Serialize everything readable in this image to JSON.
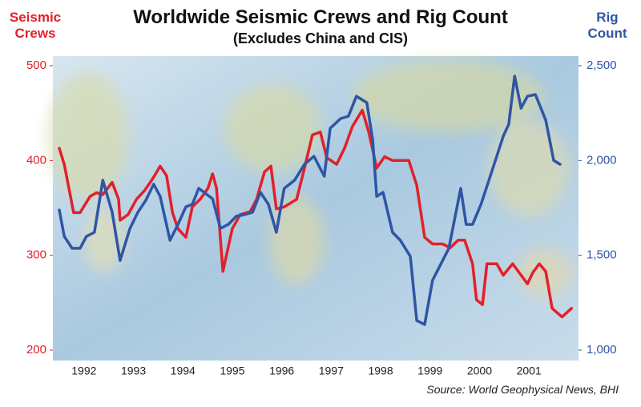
{
  "chart_data": {
    "type": "line",
    "title": "Worldwide Seismic Crews and Rig Count",
    "subtitle": "(Excludes China and CIS)",
    "y_label": "Seismic Crews",
    "y2_label": "Rig Count",
    "source": "Source: World Geophysical News, BHI",
    "xlim": [
      1992,
      2002.5
    ],
    "xticks": [
      {
        "value": 1992.5,
        "label": "1992"
      },
      {
        "value": 1993.5,
        "label": "1993"
      },
      {
        "value": 1994.5,
        "label": "1994"
      },
      {
        "value": 1995.5,
        "label": "1995"
      },
      {
        "value": 1996.5,
        "label": "1996"
      },
      {
        "value": 1997.5,
        "label": "1997"
      },
      {
        "value": 1998.5,
        "label": "1998"
      },
      {
        "value": 1999.5,
        "label": "1999"
      },
      {
        "value": 2000.5,
        "label": "2000"
      },
      {
        "value": 2001.5,
        "label": "2001"
      }
    ],
    "ylim": [
      200,
      500
    ],
    "yticks": [
      200,
      300,
      400,
      500
    ],
    "y2lim": [
      1000,
      2500
    ],
    "y2ticks": [
      {
        "value": 1000,
        "label": "1,000"
      },
      {
        "value": 1500,
        "label": "1,500"
      },
      {
        "value": 2000,
        "label": "2,000"
      },
      {
        "value": 2500,
        "label": "2,500"
      }
    ],
    "series": [
      {
        "name": "Seismic Crews",
        "color": "#e3202a",
        "axis": "y",
        "x": [
          1992.0,
          1992.1,
          1992.29,
          1992.42,
          1992.62,
          1992.75,
          1992.88,
          1993.07,
          1993.2,
          1993.23,
          1993.39,
          1993.56,
          1993.72,
          1993.88,
          1994.04,
          1994.17,
          1994.29,
          1994.4,
          1994.56,
          1994.69,
          1994.85,
          1995.01,
          1995.1,
          1995.18,
          1995.31,
          1995.5,
          1995.66,
          1995.86,
          1995.99,
          1996.15,
          1996.28,
          1996.39,
          1996.55,
          1996.8,
          1996.96,
          1997.12,
          1997.28,
          1997.41,
          1997.61,
          1997.77,
          1997.93,
          1998.13,
          1998.26,
          1998.42,
          1998.58,
          1998.74,
          1998.9,
          1999.07,
          1999.23,
          1999.39,
          1999.55,
          1999.75,
          1999.91,
          2000.07,
          2000.2,
          2000.36,
          2000.44,
          2000.56,
          2000.65,
          2000.85,
          2000.98,
          2001.17,
          2001.3,
          2001.47,
          2001.58,
          2001.71,
          2001.84,
          2001.97,
          2002.17,
          2002.36
        ],
        "values": [
          413,
          396,
          345,
          345,
          362,
          366,
          364,
          377,
          359,
          337,
          343,
          359,
          368,
          380,
          394,
          384,
          345,
          328,
          319,
          351,
          359,
          371,
          386,
          371,
          283,
          328,
          343,
          346,
          359,
          388,
          394,
          349,
          351,
          359,
          392,
          427,
          430,
          403,
          396,
          413,
          436,
          453,
          430,
          392,
          404,
          400,
          400,
          400,
          374,
          319,
          312,
          312,
          308,
          316,
          316,
          291,
          253,
          248,
          291,
          291,
          279,
          291,
          282,
          270,
          282,
          291,
          283,
          244,
          235,
          244
        ]
      },
      {
        "name": "Rig Count",
        "color": "#2f55a4",
        "axis": "y2",
        "x": [
          1992.0,
          1992.1,
          1992.26,
          1992.42,
          1992.55,
          1992.71,
          1992.88,
          1993.07,
          1993.23,
          1993.43,
          1993.59,
          1993.75,
          1993.91,
          1994.04,
          1994.24,
          1994.4,
          1994.56,
          1994.69,
          1994.82,
          1994.93,
          1995.1,
          1995.26,
          1995.42,
          1995.58,
          1995.74,
          1995.91,
          1996.07,
          1996.23,
          1996.39,
          1996.55,
          1996.76,
          1996.96,
          1997.15,
          1997.36,
          1997.48,
          1997.69,
          1997.85,
          1998.01,
          1998.22,
          1998.34,
          1998.42,
          1998.55,
          1998.74,
          1998.9,
          1999.1,
          1999.23,
          1999.39,
          1999.55,
          1999.88,
          2000.12,
          2000.23,
          2000.36,
          2000.53,
          2000.77,
          2000.98,
          2001.09,
          2001.21,
          2001.34,
          2001.47,
          2001.63,
          2001.84,
          2002.0,
          2002.13
        ],
        "values": [
          1739,
          1600,
          1537,
          1537,
          1600,
          1621,
          1896,
          1727,
          1473,
          1642,
          1727,
          1790,
          1875,
          1811,
          1579,
          1663,
          1756,
          1769,
          1853,
          1832,
          1798,
          1642,
          1663,
          1706,
          1714,
          1727,
          1832,
          1769,
          1621,
          1853,
          1896,
          1980,
          2022,
          1917,
          2170,
          2221,
          2234,
          2339,
          2305,
          2107,
          1811,
          1832,
          1621,
          1579,
          1494,
          1156,
          1135,
          1368,
          1537,
          1853,
          1663,
          1663,
          1769,
          1959,
          2128,
          2191,
          2445,
          2276,
          2339,
          2348,
          2213,
          2001,
          1980
        ]
      }
    ]
  }
}
